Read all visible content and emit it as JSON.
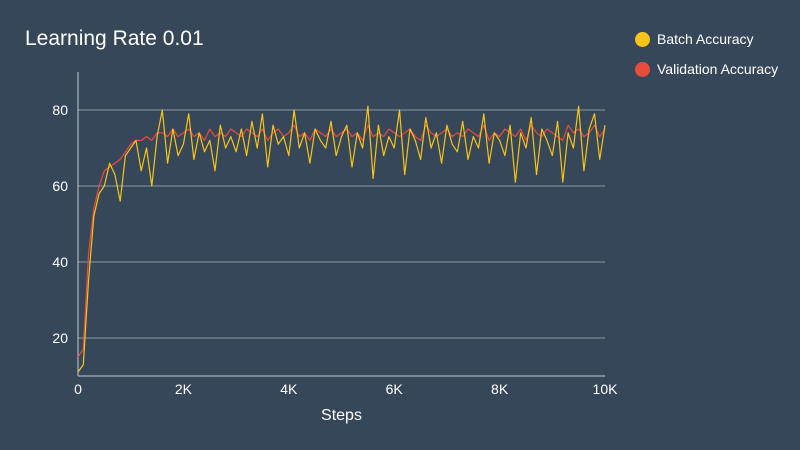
{
  "chart_data": {
    "type": "line",
    "title": "Learning Rate 0.01",
    "xlabel": "Steps",
    "ylabel": "",
    "xlim": [
      0,
      10000
    ],
    "ylim": [
      10,
      90
    ],
    "x_ticks": [
      {
        "value": 0,
        "label": "0"
      },
      {
        "value": 2000,
        "label": "2K"
      },
      {
        "value": 4000,
        "label": "4K"
      },
      {
        "value": 6000,
        "label": "6K"
      },
      {
        "value": 8000,
        "label": "8K"
      },
      {
        "value": 10000,
        "label": "10K"
      }
    ],
    "y_ticks": [
      {
        "value": 20,
        "label": "20"
      },
      {
        "value": 40,
        "label": "40"
      },
      {
        "value": 60,
        "label": "60"
      },
      {
        "value": 80,
        "label": "80"
      }
    ],
    "grid": "horizontal",
    "legend_position": "top-right",
    "series": [
      {
        "name": "Batch Accuracy",
        "color": "#f5c518",
        "x": [
          0,
          100,
          200,
          300,
          400,
          500,
          600,
          700,
          800,
          900,
          1000,
          1100,
          1200,
          1300,
          1400,
          1500,
          1600,
          1700,
          1800,
          1900,
          2000,
          2100,
          2200,
          2300,
          2400,
          2500,
          2600,
          2700,
          2800,
          2900,
          3000,
          3100,
          3200,
          3300,
          3400,
          3500,
          3600,
          3700,
          3800,
          3900,
          4000,
          4100,
          4200,
          4300,
          4400,
          4500,
          4600,
          4700,
          4800,
          4900,
          5000,
          5100,
          5200,
          5300,
          5400,
          5500,
          5600,
          5700,
          5800,
          5900,
          6000,
          6100,
          6200,
          6300,
          6400,
          6500,
          6600,
          6700,
          6800,
          6900,
          7000,
          7100,
          7200,
          7300,
          7400,
          7500,
          7600,
          7700,
          7800,
          7900,
          8000,
          8100,
          8200,
          8300,
          8400,
          8500,
          8600,
          8700,
          8800,
          8900,
          9000,
          9100,
          9200,
          9300,
          9400,
          9500,
          9600,
          9700,
          9800,
          9900,
          10000
        ],
        "y": [
          11,
          13,
          35,
          52,
          58,
          60,
          66,
          63,
          56,
          68,
          70,
          72,
          64,
          70,
          60,
          73,
          80,
          66,
          75,
          68,
          71,
          79,
          67,
          74,
          69,
          72,
          64,
          76,
          70,
          73,
          69,
          75,
          68,
          77,
          70,
          79,
          65,
          76,
          71,
          73,
          68,
          80,
          70,
          74,
          66,
          75,
          72,
          70,
          77,
          68,
          73,
          76,
          65,
          74,
          70,
          81,
          62,
          76,
          68,
          73,
          70,
          80,
          63,
          75,
          72,
          67,
          78,
          70,
          74,
          66,
          76,
          71,
          69,
          77,
          67,
          73,
          70,
          79,
          66,
          74,
          72,
          68,
          76,
          61,
          74,
          70,
          78,
          63,
          75,
          72,
          68,
          77,
          61,
          74,
          70,
          81,
          64,
          75,
          79,
          67,
          76
        ]
      },
      {
        "name": "Validation Accuracy",
        "color": "#e84c3d",
        "x": [
          0,
          100,
          200,
          300,
          400,
          500,
          600,
          700,
          800,
          900,
          1000,
          1100,
          1200,
          1300,
          1400,
          1500,
          1600,
          1700,
          1800,
          1900,
          2000,
          2100,
          2200,
          2300,
          2400,
          2500,
          2600,
          2700,
          2800,
          2900,
          3000,
          3100,
          3200,
          3300,
          3400,
          3500,
          3600,
          3700,
          3800,
          3900,
          4000,
          4100,
          4200,
          4300,
          4400,
          4500,
          4600,
          4700,
          4800,
          4900,
          5000,
          5100,
          5200,
          5300,
          5400,
          5500,
          5600,
          5700,
          5800,
          5900,
          6000,
          6100,
          6200,
          6300,
          6400,
          6500,
          6600,
          6700,
          6800,
          6900,
          7000,
          7100,
          7200,
          7300,
          7400,
          7500,
          7600,
          7700,
          7800,
          7900,
          8000,
          8100,
          8200,
          8300,
          8400,
          8500,
          8600,
          8700,
          8800,
          8900,
          9000,
          9100,
          9200,
          9300,
          9400,
          9500,
          9600,
          9700,
          9800,
          9900,
          10000
        ],
        "y": [
          15,
          17,
          42,
          54,
          60,
          64,
          65,
          66,
          67,
          69,
          71,
          72,
          72,
          73,
          72,
          74,
          74,
          73,
          75,
          73,
          74,
          75,
          73,
          74,
          72,
          75,
          73,
          74,
          73,
          75,
          74,
          73,
          75,
          74,
          73,
          75,
          72,
          74,
          75,
          73,
          74,
          76,
          73,
          74,
          72,
          75,
          74,
          73,
          75,
          73,
          74,
          75,
          73,
          74,
          72,
          76,
          73,
          74,
          73,
          75,
          74,
          73,
          74,
          75,
          73,
          72,
          76,
          74,
          73,
          74,
          75,
          73,
          74,
          73,
          75,
          74,
          73,
          76,
          72,
          74,
          73,
          75,
          74,
          73,
          75,
          72,
          76,
          74,
          73,
          75,
          74,
          73,
          72,
          76,
          74,
          75,
          73,
          74,
          76,
          73,
          75
        ]
      }
    ]
  }
}
